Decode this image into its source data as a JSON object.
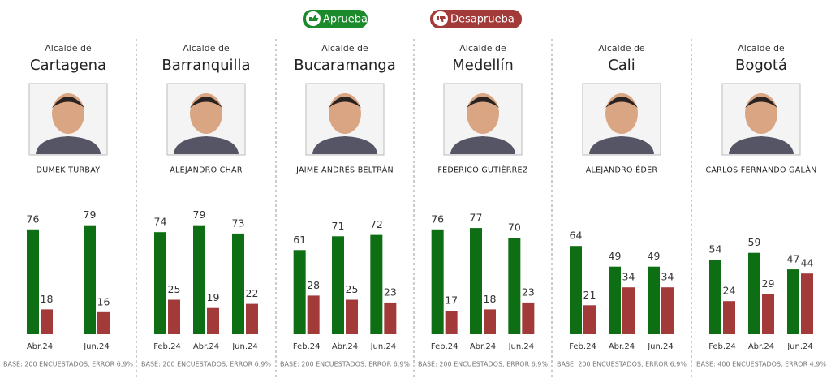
{
  "chart_data": [
    {
      "type": "bar",
      "title": "Alcalde de",
      "subtitle": "Cartagena",
      "person": "DUMEK TURBAY",
      "categories": [
        "Abr.24",
        "Jun.24"
      ],
      "series": [
        {
          "name": "Aprueba",
          "color": "#0d6e14",
          "values": [
            76,
            79
          ]
        },
        {
          "name": "Desaprueba",
          "color": "#a33a3a",
          "values": [
            18,
            16
          ]
        }
      ],
      "note": "BASE: 200 ENCUESTADOS, ERROR 6,9%"
    },
    {
      "type": "bar",
      "title": "Alcalde de",
      "subtitle": "Barranquilla",
      "person": "ALEJANDRO CHAR",
      "categories": [
        "Feb.24",
        "Abr.24",
        "Jun.24"
      ],
      "series": [
        {
          "name": "Aprueba",
          "color": "#0d6e14",
          "values": [
            74,
            79,
            73
          ]
        },
        {
          "name": "Desaprueba",
          "color": "#a33a3a",
          "values": [
            25,
            19,
            22
          ]
        }
      ],
      "note": "BASE: 200 ENCUESTADOS, ERROR 6,9%"
    },
    {
      "type": "bar",
      "title": "Alcalde de",
      "subtitle": "Bucaramanga",
      "person": "JAIME ANDRÉS BELTRÁN",
      "categories": [
        "Feb.24",
        "Abr.24",
        "Jun.24"
      ],
      "series": [
        {
          "name": "Aprueba",
          "color": "#0d6e14",
          "values": [
            61,
            71,
            72
          ]
        },
        {
          "name": "Desaprueba",
          "color": "#a33a3a",
          "values": [
            28,
            25,
            23
          ]
        }
      ],
      "note": "BASE: 200 ENCUESTADOS, ERROR 6,9%"
    },
    {
      "type": "bar",
      "title": "Alcalde de",
      "subtitle": "Medellín",
      "person": "FEDERICO GUTIÉRREZ",
      "categories": [
        "Feb.24",
        "Abr.24",
        "Jun.24"
      ],
      "series": [
        {
          "name": "Aprueba",
          "color": "#0d6e14",
          "values": [
            76,
            77,
            70
          ]
        },
        {
          "name": "Desaprueba",
          "color": "#a33a3a",
          "values": [
            17,
            18,
            23
          ]
        }
      ],
      "note": "BASE: 200 ENCUESTADOS, ERROR 6,9%"
    },
    {
      "type": "bar",
      "title": "Alcalde de",
      "subtitle": "Cali",
      "person": "ALEJANDRO ÉDER",
      "categories": [
        "Feb.24",
        "Abr.24",
        "Jun.24"
      ],
      "series": [
        {
          "name": "Aprueba",
          "color": "#0d6e14",
          "values": [
            64,
            49,
            49
          ]
        },
        {
          "name": "Desaprueba",
          "color": "#a33a3a",
          "values": [
            21,
            34,
            34
          ]
        }
      ],
      "note": "BASE: 200 ENCUESTADOS, ERROR 6,9%"
    },
    {
      "type": "bar",
      "title": "Alcalde de",
      "subtitle": "Bogotá",
      "person": "CARLOS FERNANDO GALÁN",
      "categories": [
        "Feb.24",
        "Abr.24",
        "Jun.24"
      ],
      "series": [
        {
          "name": "Aprueba",
          "color": "#0d6e14",
          "values": [
            54,
            59,
            47
          ]
        },
        {
          "name": "Desaprueba",
          "color": "#a33a3a",
          "values": [
            24,
            29,
            44
          ]
        }
      ],
      "note": "BASE: 400 ENCUESTADOS, ERROR 4,9%"
    }
  ]
}
